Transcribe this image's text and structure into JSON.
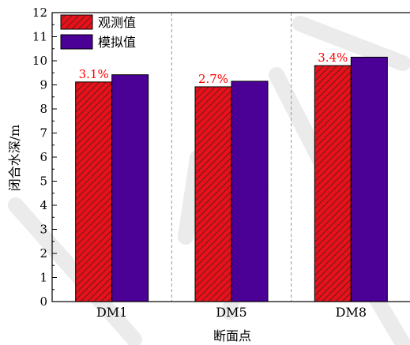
{
  "chart_data": {
    "type": "bar",
    "xlabel": "断面点",
    "ylabel": "闭合水深/m",
    "ylim": [
      0,
      12
    ],
    "yticks": [
      "0",
      "1",
      "2",
      "3",
      "4",
      "5",
      "6",
      "7",
      "8",
      "9",
      "10",
      "11",
      "12"
    ],
    "categories": [
      "DM1",
      "DM5",
      "DM8"
    ],
    "series": [
      {
        "name": "观测值",
        "values": [
          9.12,
          8.92,
          9.8
        ],
        "color": "#e8111a",
        "pattern": "diagonal-hatch"
      },
      {
        "name": "模拟值",
        "values": [
          9.42,
          9.15,
          10.15
        ],
        "color": "#4b0096",
        "pattern": "solid"
      }
    ],
    "annotations": [
      "3.1%",
      "2.7%",
      "3.4%"
    ],
    "annotation_color": "#ff0000",
    "legend_position": "top-left",
    "category_separators": "dashed"
  }
}
